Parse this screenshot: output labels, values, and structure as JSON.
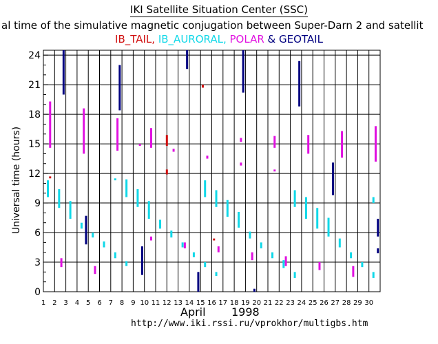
{
  "header": {
    "title": "IKI Satellite Situation Center (SSC)",
    "subtitle": "al time of the simulative magnetic conjugation between Super-Darn 2 and satellit"
  },
  "legend": [
    {
      "label": "IB_TAIL",
      "color": "#d01010"
    },
    {
      "label": ", ",
      "color": "#d01010"
    },
    {
      "label": "IB_AURORAL",
      "color": "#10d8e8"
    },
    {
      "label": ", ",
      "color": "#10d8e8"
    },
    {
      "label": "POLAR",
      "color": "#e010e0"
    },
    {
      "label": " & ",
      "color": "#000080"
    },
    {
      "label": "GEOTAIL",
      "color": "#000080"
    }
  ],
  "footer": {
    "month": "April",
    "year": "1998",
    "url": "http://www.iki.rssi.ru/vprokhor/multigbs.htm"
  },
  "colors": {
    "ib_tail": "#d01010",
    "ib_auroral": "#10d8e8",
    "polar": "#e010e0",
    "geotail": "#000080"
  },
  "chart_data": {
    "type": "bar",
    "title": "IKI Satellite Situation Center (SSC)",
    "ylabel": "Universal time (hours)",
    "xlabel": "April 1998",
    "xlim": [
      1,
      31
    ],
    "ylim": [
      0,
      24.5
    ],
    "x_ticks": [
      1,
      2,
      3,
      4,
      5,
      6,
      7,
      8,
      9,
      10,
      11,
      12,
      13,
      14,
      15,
      16,
      17,
      18,
      19,
      20,
      21,
      22,
      23,
      24,
      25,
      26,
      27,
      28,
      29,
      30
    ],
    "y_ticks": [
      0,
      3,
      6,
      9,
      12,
      15,
      18,
      21,
      24
    ],
    "grid": true,
    "series": [
      {
        "name": "IB_TAIL",
        "color": "#d01010",
        "intervals": [
          {
            "day": 1.6,
            "start": 11.5,
            "end": 11.7
          },
          {
            "day": 12.0,
            "start": 14.8,
            "end": 15.9
          },
          {
            "day": 12.0,
            "start": 11.9,
            "end": 12.4
          },
          {
            "day": 15.2,
            "start": 20.7,
            "end": 21.0
          },
          {
            "day": 16.2,
            "start": 5.2,
            "end": 5.4
          }
        ]
      },
      {
        "name": "IB_AURORAL",
        "color": "#10d8e8",
        "intervals": [
          {
            "day": 1.4,
            "start": 9.6,
            "end": 11.3
          },
          {
            "day": 2.4,
            "start": 8.5,
            "end": 10.4
          },
          {
            "day": 3.4,
            "start": 7.4,
            "end": 9.2
          },
          {
            "day": 4.4,
            "start": 6.4,
            "end": 7.0
          },
          {
            "day": 5.4,
            "start": 5.5,
            "end": 6.0
          },
          {
            "day": 6.4,
            "start": 4.5,
            "end": 5.1
          },
          {
            "day": 7.4,
            "start": 3.4,
            "end": 4.0
          },
          {
            "day": 7.4,
            "start": 11.3,
            "end": 11.5
          },
          {
            "day": 8.4,
            "start": 2.6,
            "end": 3.1
          },
          {
            "day": 8.4,
            "start": 9.6,
            "end": 11.4
          },
          {
            "day": 9.4,
            "start": 8.6,
            "end": 10.4
          },
          {
            "day": 10.4,
            "start": 7.4,
            "end": 9.2
          },
          {
            "day": 11.4,
            "start": 6.4,
            "end": 7.3
          },
          {
            "day": 12.4,
            "start": 5.5,
            "end": 6.2
          },
          {
            "day": 13.4,
            "start": 4.5,
            "end": 5.0
          },
          {
            "day": 14.4,
            "start": 3.5,
            "end": 4.0
          },
          {
            "day": 15.4,
            "start": 2.5,
            "end": 3.0
          },
          {
            "day": 15.4,
            "start": 9.6,
            "end": 11.3
          },
          {
            "day": 16.4,
            "start": 1.6,
            "end": 2.0
          },
          {
            "day": 16.4,
            "start": 8.6,
            "end": 10.3
          },
          {
            "day": 17.4,
            "start": 7.6,
            "end": 9.3
          },
          {
            "day": 18.4,
            "start": 6.5,
            "end": 8.1
          },
          {
            "day": 19.4,
            "start": 5.4,
            "end": 6.1
          },
          {
            "day": 20.4,
            "start": 4.4,
            "end": 5.0
          },
          {
            "day": 21.4,
            "start": 3.4,
            "end": 4.0
          },
          {
            "day": 22.4,
            "start": 2.4,
            "end": 3.2
          },
          {
            "day": 23.4,
            "start": 1.4,
            "end": 2.0
          },
          {
            "day": 23.4,
            "start": 8.6,
            "end": 10.3
          },
          {
            "day": 24.4,
            "start": 7.4,
            "end": 9.6
          },
          {
            "day": 25.4,
            "start": 6.4,
            "end": 8.5
          },
          {
            "day": 26.4,
            "start": 5.6,
            "end": 7.5
          },
          {
            "day": 27.4,
            "start": 4.5,
            "end": 5.4
          },
          {
            "day": 28.4,
            "start": 3.4,
            "end": 4.0
          },
          {
            "day": 29.4,
            "start": 2.5,
            "end": 3.0
          },
          {
            "day": 30.4,
            "start": 1.4,
            "end": 2.0
          },
          {
            "day": 30.4,
            "start": 9.0,
            "end": 9.6
          }
        ]
      },
      {
        "name": "POLAR",
        "color": "#e010e0",
        "intervals": [
          {
            "day": 1.6,
            "start": 14.6,
            "end": 19.3
          },
          {
            "day": 2.6,
            "start": 2.5,
            "end": 3.4
          },
          {
            "day": 4.6,
            "start": 14.0,
            "end": 18.6
          },
          {
            "day": 5.6,
            "start": 1.8,
            "end": 2.6
          },
          {
            "day": 7.6,
            "start": 14.3,
            "end": 17.6
          },
          {
            "day": 9.6,
            "start": 14.8,
            "end": 15.0
          },
          {
            "day": 10.6,
            "start": 5.2,
            "end": 5.6
          },
          {
            "day": 10.6,
            "start": 14.6,
            "end": 16.6
          },
          {
            "day": 12.6,
            "start": 14.2,
            "end": 14.5
          },
          {
            "day": 13.6,
            "start": 4.4,
            "end": 5.0
          },
          {
            "day": 15.6,
            "start": 13.5,
            "end": 13.8
          },
          {
            "day": 16.6,
            "start": 4.0,
            "end": 4.6
          },
          {
            "day": 18.6,
            "start": 12.8,
            "end": 13.1
          },
          {
            "day": 18.6,
            "start": 15.2,
            "end": 15.6
          },
          {
            "day": 19.6,
            "start": 3.2,
            "end": 4.0
          },
          {
            "day": 21.6,
            "start": 12.2,
            "end": 12.4
          },
          {
            "day": 21.6,
            "start": 14.6,
            "end": 15.8
          },
          {
            "day": 22.6,
            "start": 2.6,
            "end": 3.6
          },
          {
            "day": 24.6,
            "start": 14.0,
            "end": 15.9
          },
          {
            "day": 25.6,
            "start": 2.2,
            "end": 3.0
          },
          {
            "day": 27.6,
            "start": 13.6,
            "end": 16.3
          },
          {
            "day": 28.6,
            "start": 1.5,
            "end": 2.6
          },
          {
            "day": 30.6,
            "start": 13.2,
            "end": 16.8
          }
        ]
      },
      {
        "name": "GEOTAIL",
        "color": "#000080",
        "intervals": [
          {
            "day": 2.8,
            "start": 20.0,
            "end": 24.5
          },
          {
            "day": 4.8,
            "start": 4.8,
            "end": 7.7
          },
          {
            "day": 7.8,
            "start": 18.4,
            "end": 23.0
          },
          {
            "day": 9.8,
            "start": 1.7,
            "end": 4.6
          },
          {
            "day": 13.8,
            "start": 22.6,
            "end": 24.5
          },
          {
            "day": 14.8,
            "start": 0.0,
            "end": 2.0
          },
          {
            "day": 18.8,
            "start": 20.2,
            "end": 24.5
          },
          {
            "day": 19.8,
            "start": 0.0,
            "end": 0.3
          },
          {
            "day": 23.8,
            "start": 18.8,
            "end": 23.4
          },
          {
            "day": 26.8,
            "start": 9.8,
            "end": 13.1
          },
          {
            "day": 30.8,
            "start": 3.9,
            "end": 4.4
          },
          {
            "day": 30.8,
            "start": 5.6,
            "end": 7.4
          }
        ]
      }
    ]
  }
}
